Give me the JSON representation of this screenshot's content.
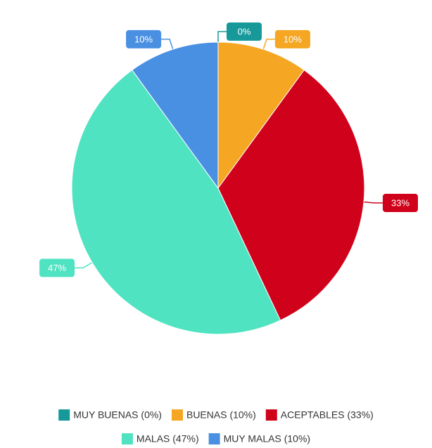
{
  "chart_data": {
    "type": "pie",
    "categories": [
      "MUY BUENAS (0%)",
      "BUENAS (10%)",
      "ACEPTABLES (33%)",
      "MALAS (47%)",
      "MUY MALAS (10%)"
    ],
    "values": [
      0,
      10,
      33,
      47,
      10
    ],
    "value_labels": [
      "0%",
      "10%",
      "33%",
      "47%",
      "10%"
    ],
    "colors": [
      "#17999a",
      "#f5a623",
      "#d0021b",
      "#50e3c2",
      "#4a90e2"
    ],
    "legend": "bottom"
  }
}
